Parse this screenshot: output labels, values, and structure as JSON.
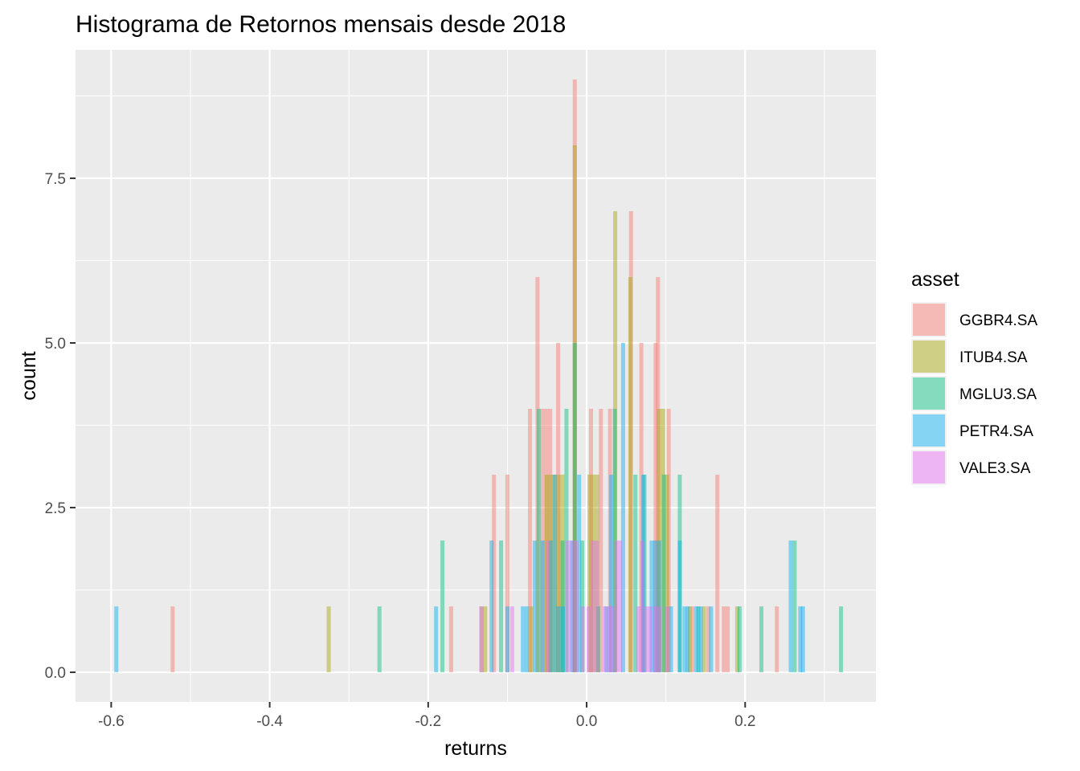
{
  "chart_data": {
    "type": "histogram",
    "title": "Histograma de Retornos mensais desde 2018",
    "xlabel": "returns",
    "ylabel": "count",
    "xlim": [
      -0.645,
      0.365
    ],
    "ylim": [
      -0.45,
      9.45
    ],
    "x_major_ticks": [
      -0.6,
      -0.4,
      -0.2,
      0.0,
      0.2
    ],
    "x_tick_labels": [
      "-0.6",
      "-0.4",
      "-0.2",
      "0.0",
      "0.2"
    ],
    "x_minor_ticks": [
      -0.5,
      -0.3,
      -0.1,
      0.1,
      0.3
    ],
    "y_major_ticks": [
      0,
      2.5,
      5,
      7.5
    ],
    "y_tick_labels": [
      "0.0",
      "2.5",
      "5.0",
      "7.5"
    ],
    "y_minor_ticks": [
      1.25,
      3.75,
      6.25,
      8.75
    ],
    "grid": true,
    "legend_position": "right",
    "legend_title": "asset",
    "bin_width": 0.0051,
    "series": [
      {
        "name": "GGBR4.SA",
        "color": "#F8766D",
        "bins": [
          [
            -0.5225,
            1
          ],
          [
            -0.171,
            1
          ],
          [
            -0.117,
            3
          ],
          [
            -0.1,
            3
          ],
          [
            -0.0715,
            4
          ],
          [
            -0.062,
            6
          ],
          [
            -0.056,
            4
          ],
          [
            -0.051,
            4
          ],
          [
            -0.046,
            4
          ],
          [
            -0.036,
            5
          ],
          [
            -0.015,
            9
          ],
          [
            0.0055,
            4
          ],
          [
            0.018,
            4
          ],
          [
            0.0295,
            4
          ],
          [
            0.056,
            7
          ],
          [
            0.069,
            5
          ],
          [
            0.087,
            5
          ],
          [
            0.09,
            6
          ],
          [
            0.1035,
            4
          ],
          [
            0.1335,
            1
          ],
          [
            0.1535,
            1
          ],
          [
            0.165,
            3
          ],
          [
            0.173,
            1
          ],
          [
            0.178,
            1
          ],
          [
            0.24,
            1
          ]
        ]
      },
      {
        "name": "ITUB4.SA",
        "color": "#A3A500",
        "bins": [
          [
            -0.3255,
            1
          ],
          [
            -0.1325,
            1
          ],
          [
            -0.128,
            1
          ],
          [
            -0.07,
            1
          ],
          [
            -0.0505,
            3
          ],
          [
            -0.0455,
            3
          ],
          [
            -0.0405,
            3
          ],
          [
            -0.0355,
            3
          ],
          [
            -0.0305,
            3
          ],
          [
            -0.015,
            8
          ],
          [
            0.0035,
            3
          ],
          [
            0.0085,
            3
          ],
          [
            0.0135,
            3
          ],
          [
            0.036,
            7
          ],
          [
            0.055,
            6
          ],
          [
            0.0915,
            4
          ],
          [
            0.0965,
            4
          ],
          [
            0.1015,
            3
          ],
          [
            0.13,
            1
          ],
          [
            0.148,
            1
          ],
          [
            0.19,
            1
          ]
        ]
      },
      {
        "name": "MGLU3.SA",
        "color": "#00BF7D",
        "bins": [
          [
            -0.2615,
            1
          ],
          [
            -0.182,
            2
          ],
          [
            -0.108,
            2
          ],
          [
            -0.0605,
            4
          ],
          [
            -0.0305,
            2
          ],
          [
            -0.0255,
            4
          ],
          [
            -0.015,
            5
          ],
          [
            -0.0055,
            2
          ],
          [
            0.0145,
            1
          ],
          [
            0.0355,
            4
          ],
          [
            0.0615,
            3
          ],
          [
            0.073,
            3
          ],
          [
            0.0975,
            3
          ],
          [
            0.1175,
            3
          ],
          [
            0.141,
            1
          ],
          [
            0.193,
            1
          ],
          [
            0.2205,
            1
          ],
          [
            0.2625,
            2
          ],
          [
            0.321,
            1
          ]
        ]
      },
      {
        "name": "PETR4.SA",
        "color": "#00B0F6",
        "bins": [
          [
            -0.5935,
            1
          ],
          [
            -0.19,
            1
          ],
          [
            -0.12,
            2
          ],
          [
            -0.1,
            1
          ],
          [
            -0.0805,
            1
          ],
          [
            -0.0755,
            1
          ],
          [
            -0.0655,
            2
          ],
          [
            -0.0555,
            2
          ],
          [
            -0.0455,
            2
          ],
          [
            -0.0405,
            3
          ],
          [
            -0.0355,
            1
          ],
          [
            -0.03,
            1
          ],
          [
            -0.019,
            2
          ],
          [
            -0.0095,
            3
          ],
          [
            0.025,
            1
          ],
          [
            0.031,
            3
          ],
          [
            0.046,
            5
          ],
          [
            0.0715,
            3
          ],
          [
            0.082,
            2
          ],
          [
            0.0865,
            2
          ],
          [
            0.0915,
            2
          ],
          [
            0.1065,
            1
          ],
          [
            0.1175,
            2
          ],
          [
            0.1235,
            1
          ],
          [
            0.1275,
            1
          ],
          [
            0.1385,
            1
          ],
          [
            0.144,
            1
          ],
          [
            0.157,
            1
          ],
          [
            0.2575,
            2
          ],
          [
            0.2695,
            1
          ],
          [
            0.273,
            1
          ]
        ]
      },
      {
        "name": "VALE3.SA",
        "color": "#E76BF3",
        "bins": [
          [
            -0.133,
            1
          ],
          [
            -0.094,
            1
          ],
          [
            -0.049,
            2
          ],
          [
            -0.024,
            2
          ],
          [
            -0.0175,
            2
          ],
          [
            -0.0125,
            2
          ],
          [
            -0.005,
            1
          ],
          [
            0.0025,
            1
          ],
          [
            0.0075,
            2
          ],
          [
            0.0125,
            2
          ],
          [
            0.023,
            1
          ],
          [
            0.028,
            1
          ],
          [
            0.0325,
            1
          ],
          [
            0.0375,
            2
          ],
          [
            0.0425,
            2
          ],
          [
            0.0655,
            1
          ],
          [
            0.0705,
            2
          ],
          [
            0.0755,
            1
          ],
          [
            0.0805,
            1
          ],
          [
            0.0865,
            1
          ],
          [
            0.0915,
            1
          ],
          [
            0.1015,
            1
          ]
        ]
      }
    ]
  }
}
